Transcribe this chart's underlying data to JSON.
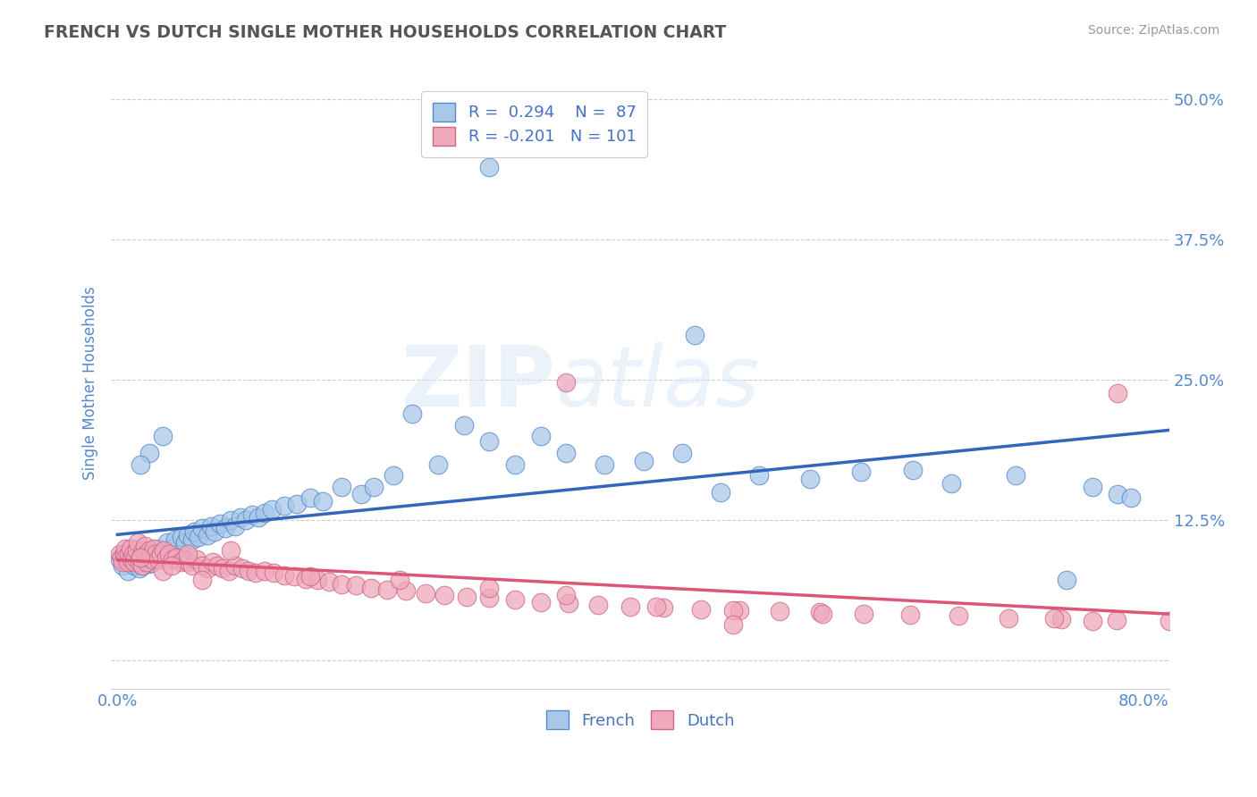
{
  "title": "FRENCH VS DUTCH SINGLE MOTHER HOUSEHOLDS CORRELATION CHART",
  "source": "Source: ZipAtlas.com",
  "ylabel": "Single Mother Households",
  "xlim": [
    -0.005,
    0.82
  ],
  "ylim": [
    -0.025,
    0.52
  ],
  "yticks": [
    0.0,
    0.125,
    0.25,
    0.375,
    0.5
  ],
  "ytick_labels": [
    "",
    "12.5%",
    "25.0%",
    "37.5%",
    "50.0%"
  ],
  "xtick_labels": [
    "0.0%",
    "80.0%"
  ],
  "xtick_positions": [
    0.0,
    0.8
  ],
  "french_color": "#a8c8e8",
  "dutch_color": "#f0a8bc",
  "french_edge_color": "#5588cc",
  "dutch_edge_color": "#cc6688",
  "french_line_color": "#3366bb",
  "dutch_line_color": "#dd5577",
  "french_R": 0.294,
  "french_N": 87,
  "dutch_R": -0.201,
  "dutch_N": 101,
  "watermark": "ZIPAtlas",
  "background_color": "#ffffff",
  "title_color": "#555555",
  "axis_label_color": "#5588cc",
  "tick_color": "#5588cc",
  "french_scatter_x": [
    0.002,
    0.004,
    0.005,
    0.006,
    0.008,
    0.009,
    0.01,
    0.011,
    0.012,
    0.013,
    0.014,
    0.015,
    0.016,
    0.017,
    0.018,
    0.019,
    0.02,
    0.021,
    0.022,
    0.023,
    0.024,
    0.025,
    0.026,
    0.028,
    0.03,
    0.032,
    0.035,
    0.037,
    0.039,
    0.041,
    0.043,
    0.045,
    0.048,
    0.05,
    0.053,
    0.055,
    0.058,
    0.06,
    0.063,
    0.066,
    0.07,
    0.073,
    0.076,
    0.08,
    0.084,
    0.088,
    0.092,
    0.096,
    0.1,
    0.105,
    0.11,
    0.115,
    0.12,
    0.13,
    0.14,
    0.15,
    0.16,
    0.175,
    0.19,
    0.2,
    0.215,
    0.23,
    0.25,
    0.27,
    0.29,
    0.31,
    0.33,
    0.35,
    0.38,
    0.41,
    0.44,
    0.47,
    0.5,
    0.54,
    0.58,
    0.62,
    0.65,
    0.7,
    0.74,
    0.76,
    0.78,
    0.79,
    0.035,
    0.025,
    0.018,
    0.29,
    0.45
  ],
  "french_scatter_y": [
    0.09,
    0.085,
    0.092,
    0.088,
    0.08,
    0.095,
    0.1,
    0.088,
    0.093,
    0.085,
    0.09,
    0.095,
    0.088,
    0.082,
    0.09,
    0.085,
    0.092,
    0.096,
    0.088,
    0.091,
    0.086,
    0.094,
    0.087,
    0.09,
    0.095,
    0.1,
    0.092,
    0.098,
    0.105,
    0.095,
    0.1,
    0.108,
    0.095,
    0.11,
    0.105,
    0.112,
    0.108,
    0.115,
    0.11,
    0.118,
    0.112,
    0.12,
    0.115,
    0.122,
    0.118,
    0.125,
    0.12,
    0.128,
    0.125,
    0.13,
    0.128,
    0.132,
    0.135,
    0.138,
    0.14,
    0.145,
    0.142,
    0.155,
    0.148,
    0.155,
    0.165,
    0.22,
    0.175,
    0.21,
    0.195,
    0.175,
    0.2,
    0.185,
    0.175,
    0.178,
    0.185,
    0.15,
    0.165,
    0.162,
    0.168,
    0.17,
    0.158,
    0.165,
    0.072,
    0.155,
    0.148,
    0.145,
    0.2,
    0.185,
    0.175,
    0.44,
    0.29
  ],
  "dutch_scatter_x": [
    0.002,
    0.003,
    0.004,
    0.005,
    0.006,
    0.007,
    0.008,
    0.009,
    0.01,
    0.011,
    0.012,
    0.013,
    0.014,
    0.015,
    0.016,
    0.017,
    0.018,
    0.019,
    0.02,
    0.021,
    0.022,
    0.023,
    0.024,
    0.025,
    0.026,
    0.027,
    0.028,
    0.03,
    0.032,
    0.034,
    0.036,
    0.038,
    0.04,
    0.043,
    0.046,
    0.049,
    0.052,
    0.055,
    0.058,
    0.062,
    0.066,
    0.07,
    0.074,
    0.078,
    0.082,
    0.087,
    0.092,
    0.097,
    0.102,
    0.108,
    0.115,
    0.122,
    0.13,
    0.138,
    0.147,
    0.156,
    0.165,
    0.175,
    0.186,
    0.198,
    0.21,
    0.225,
    0.24,
    0.255,
    0.272,
    0.29,
    0.31,
    0.33,
    0.352,
    0.375,
    0.4,
    0.426,
    0.455,
    0.485,
    0.516,
    0.548,
    0.582,
    0.618,
    0.656,
    0.695,
    0.736,
    0.779,
    0.82,
    0.035,
    0.042,
    0.018,
    0.15,
    0.22,
    0.29,
    0.35,
    0.42,
    0.48,
    0.55,
    0.73,
    0.76,
    0.055,
    0.78,
    0.48,
    0.35,
    0.088,
    0.066
  ],
  "dutch_scatter_y": [
    0.095,
    0.092,
    0.088,
    0.095,
    0.1,
    0.093,
    0.088,
    0.095,
    0.1,
    0.09,
    0.095,
    0.088,
    0.092,
    0.098,
    0.105,
    0.088,
    0.092,
    0.085,
    0.098,
    0.102,
    0.095,
    0.088,
    0.092,
    0.098,
    0.095,
    0.09,
    0.1,
    0.095,
    0.09,
    0.095,
    0.098,
    0.092,
    0.095,
    0.09,
    0.092,
    0.088,
    0.09,
    0.088,
    0.085,
    0.09,
    0.085,
    0.082,
    0.088,
    0.085,
    0.082,
    0.08,
    0.085,
    0.082,
    0.08,
    0.078,
    0.08,
    0.078,
    0.076,
    0.075,
    0.073,
    0.072,
    0.07,
    0.068,
    0.067,
    0.065,
    0.063,
    0.062,
    0.06,
    0.058,
    0.057,
    0.056,
    0.054,
    0.052,
    0.051,
    0.05,
    0.048,
    0.047,
    0.046,
    0.045,
    0.044,
    0.043,
    0.042,
    0.041,
    0.04,
    0.038,
    0.037,
    0.036,
    0.035,
    0.08,
    0.085,
    0.092,
    0.075,
    0.072,
    0.065,
    0.058,
    0.048,
    0.045,
    0.042,
    0.038,
    0.035,
    0.095,
    0.238,
    0.032,
    0.248,
    0.098,
    0.072
  ]
}
